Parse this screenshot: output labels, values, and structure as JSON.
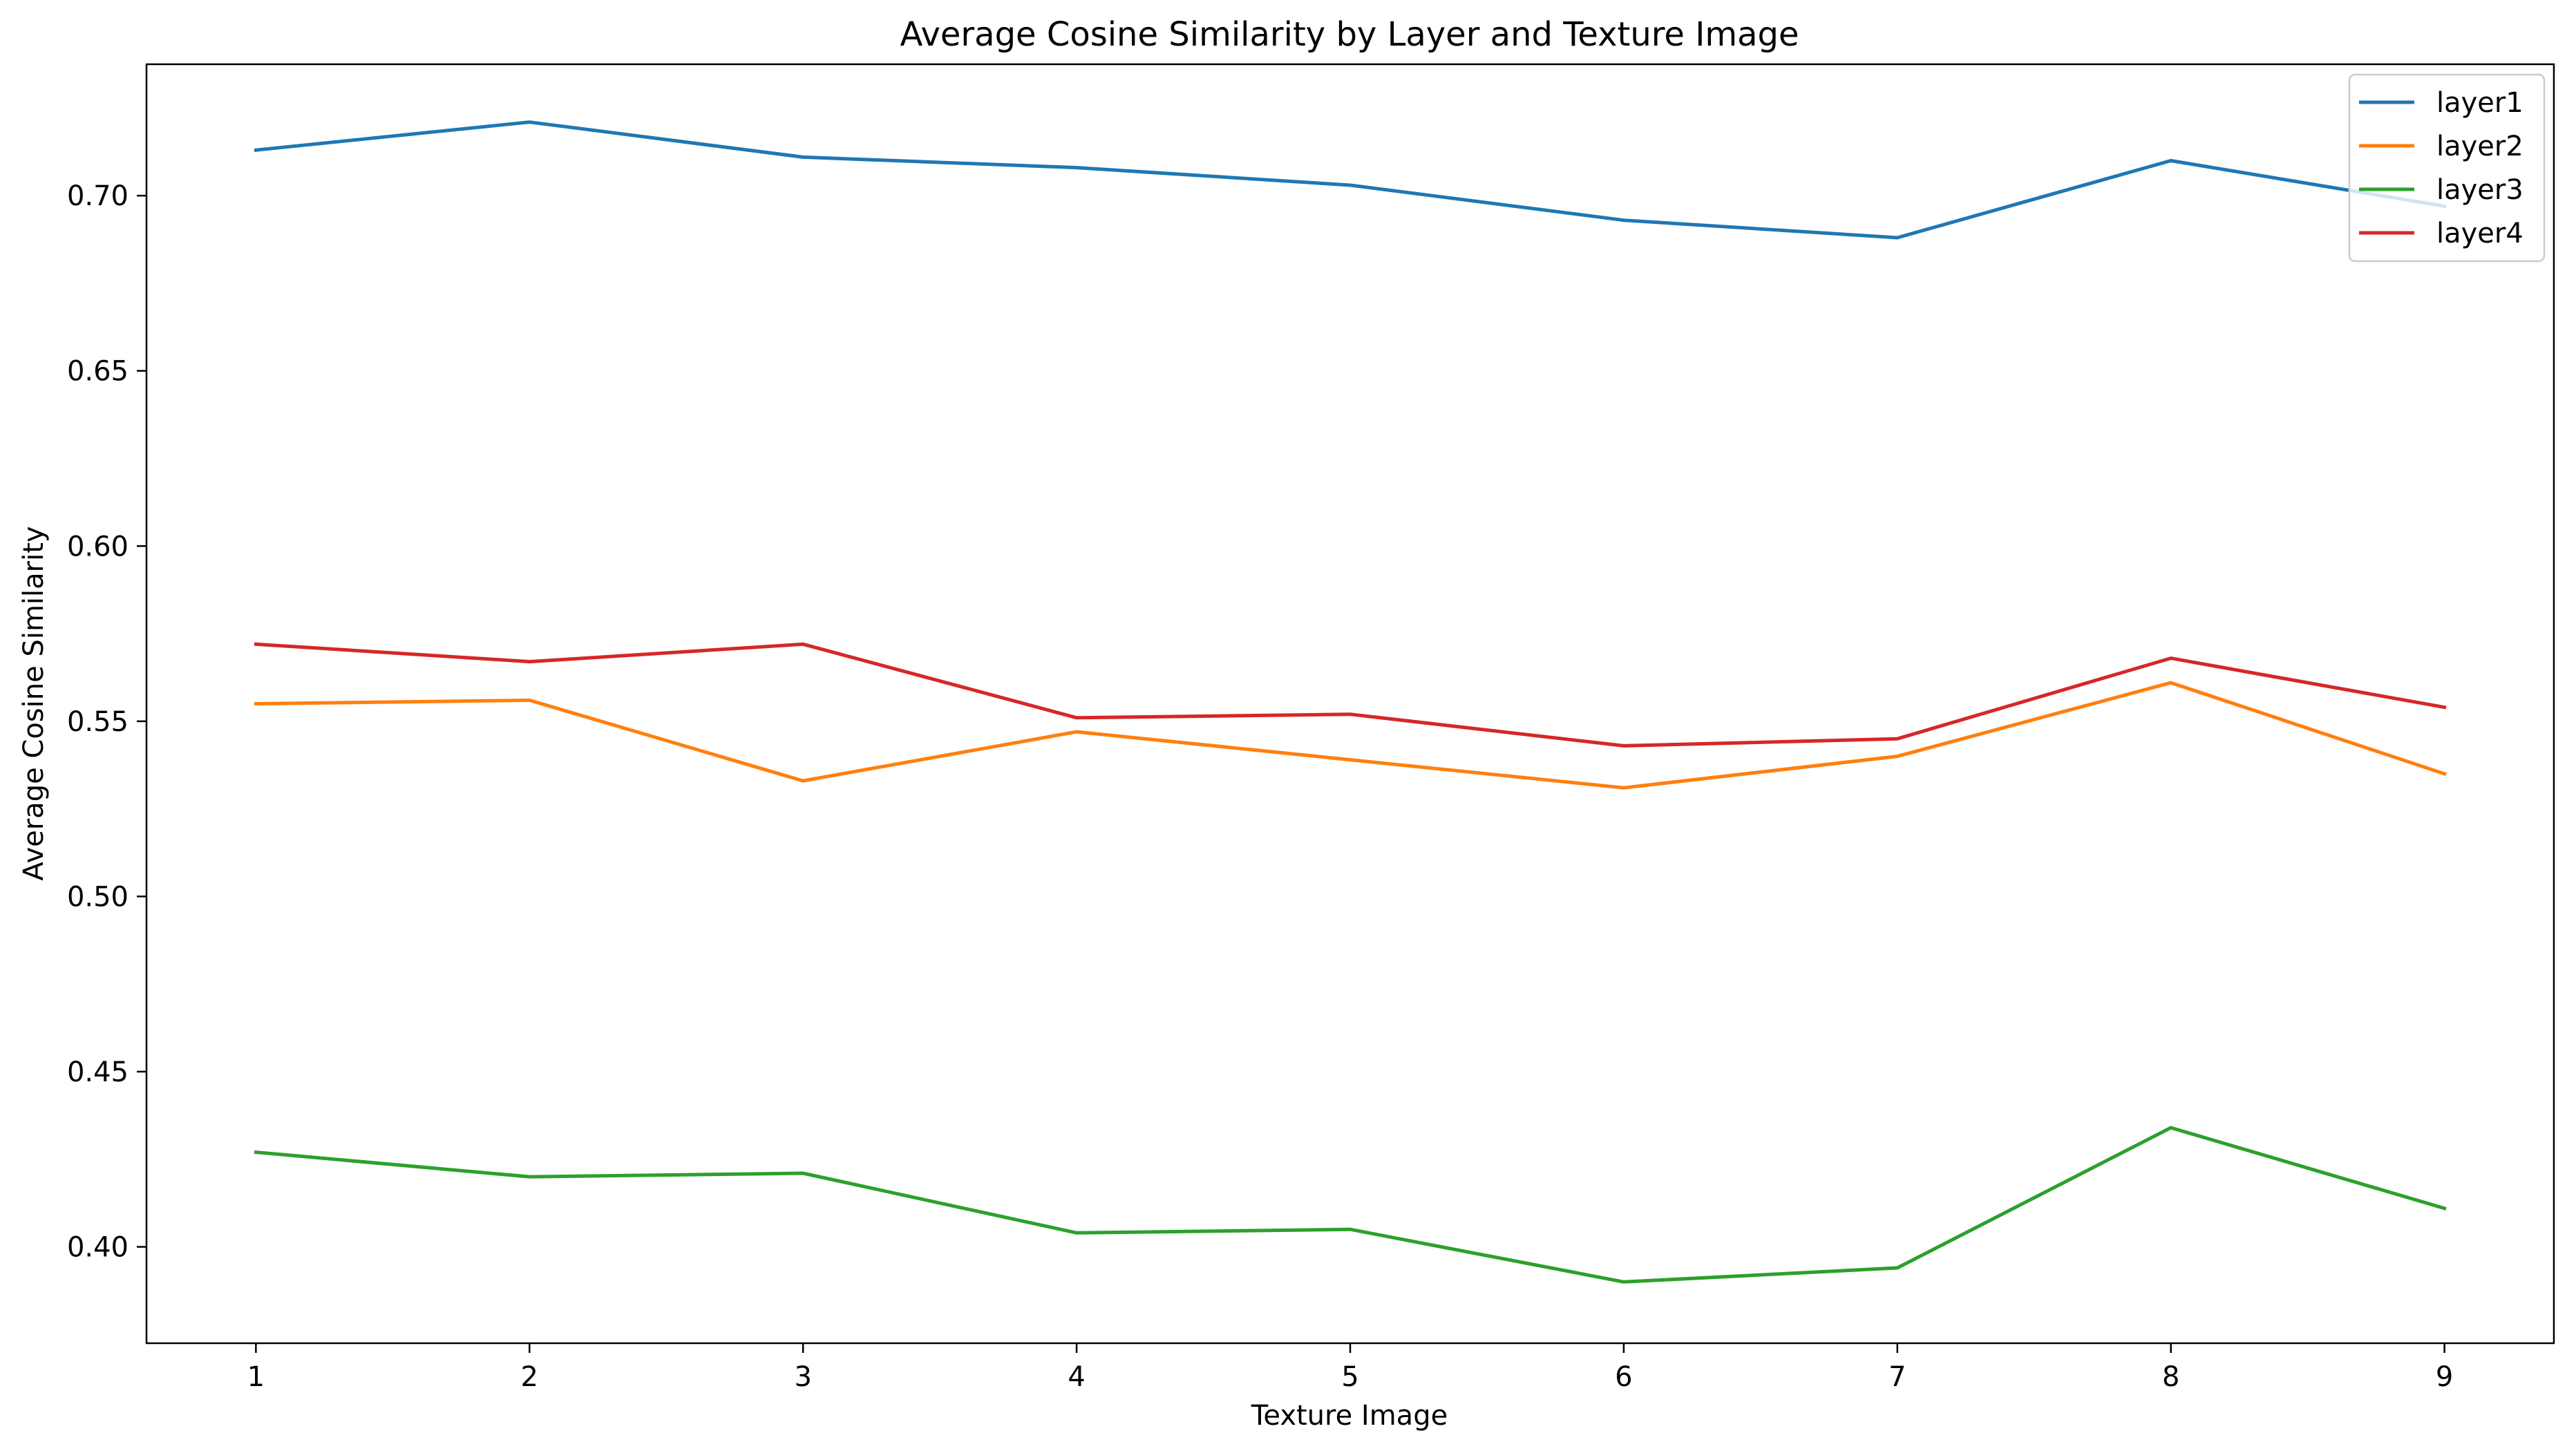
{
  "chart_data": {
    "type": "line",
    "title": "Average Cosine Similarity by Layer and Texture Image",
    "xlabel": "Texture Image",
    "ylabel": "Average Cosine Similarity",
    "x": [
      1,
      2,
      3,
      4,
      5,
      6,
      7,
      8,
      9
    ],
    "x_ticks": [
      "1",
      "2",
      "3",
      "4",
      "5",
      "6",
      "7",
      "8",
      "9"
    ],
    "y_ticks": [
      "0.40",
      "0.45",
      "0.50",
      "0.55",
      "0.60",
      "0.65",
      "0.70"
    ],
    "xlim": [
      0.6,
      9.4
    ],
    "ylim": [
      0.3725,
      0.7375
    ],
    "grid": false,
    "legend_position": "top-right",
    "series": [
      {
        "name": "layer1",
        "color": "#1f77b4",
        "values": [
          0.713,
          0.721,
          0.711,
          0.708,
          0.703,
          0.693,
          0.688,
          0.71,
          0.697
        ]
      },
      {
        "name": "layer2",
        "color": "#ff7f0e",
        "values": [
          0.555,
          0.556,
          0.533,
          0.547,
          0.539,
          0.531,
          0.54,
          0.561,
          0.535
        ]
      },
      {
        "name": "layer3",
        "color": "#2ca02c",
        "values": [
          0.427,
          0.42,
          0.421,
          0.404,
          0.405,
          0.39,
          0.394,
          0.434,
          0.411
        ]
      },
      {
        "name": "layer4",
        "color": "#d62728",
        "values": [
          0.572,
          0.567,
          0.572,
          0.551,
          0.552,
          0.543,
          0.545,
          0.568,
          0.554
        ]
      }
    ]
  }
}
